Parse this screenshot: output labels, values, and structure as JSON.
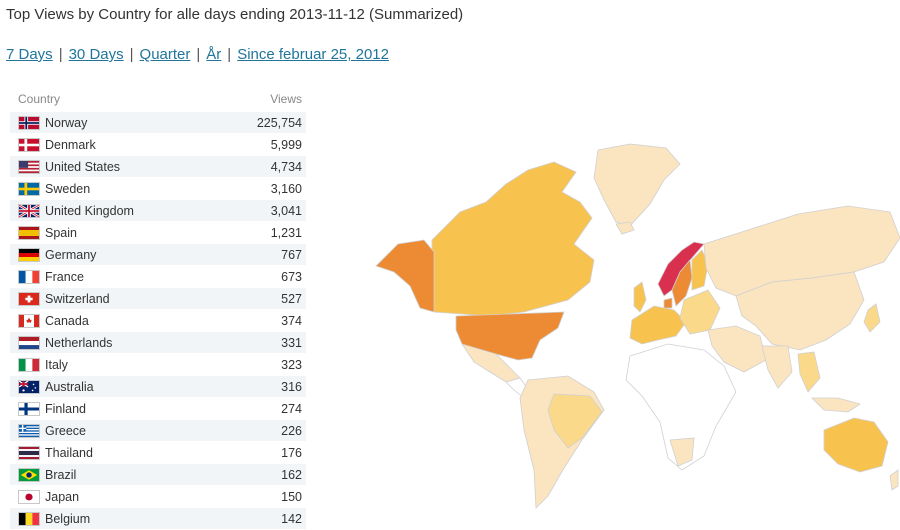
{
  "header": {
    "title": "Top Views by Country for alle days ending 2013-11-12 (Summarized)"
  },
  "periods": [
    {
      "label": "7 Days"
    },
    {
      "label": "30 Days"
    },
    {
      "label": "Quarter"
    },
    {
      "label": "År"
    },
    {
      "label": "Since februar 25, 2012"
    }
  ],
  "periods_separator": "|",
  "table": {
    "col_country": "Country",
    "col_views": "Views",
    "rows": [
      {
        "name": "Norway",
        "views": "225,754",
        "flag": "norway-flag-icon"
      },
      {
        "name": "Denmark",
        "views": "5,999",
        "flag": "denmark-flag-icon"
      },
      {
        "name": "United States",
        "views": "4,734",
        "flag": "usa-flag-icon"
      },
      {
        "name": "Sweden",
        "views": "3,160",
        "flag": "sweden-flag-icon"
      },
      {
        "name": "United Kingdom",
        "views": "3,041",
        "flag": "uk-flag-icon"
      },
      {
        "name": "Spain",
        "views": "1,231",
        "flag": "spain-flag-icon"
      },
      {
        "name": "Germany",
        "views": "767",
        "flag": "germany-flag-icon"
      },
      {
        "name": "France",
        "views": "673",
        "flag": "france-flag-icon"
      },
      {
        "name": "Switzerland",
        "views": "527",
        "flag": "switzerland-flag-icon"
      },
      {
        "name": "Canada",
        "views": "374",
        "flag": "canada-flag-icon"
      },
      {
        "name": "Netherlands",
        "views": "331",
        "flag": "netherlands-flag-icon"
      },
      {
        "name": "Italy",
        "views": "323",
        "flag": "italy-flag-icon"
      },
      {
        "name": "Australia",
        "views": "316",
        "flag": "australia-flag-icon"
      },
      {
        "name": "Finland",
        "views": "274",
        "flag": "finland-flag-icon"
      },
      {
        "name": "Greece",
        "views": "226",
        "flag": "greece-flag-icon"
      },
      {
        "name": "Thailand",
        "views": "176",
        "flag": "thailand-flag-icon"
      },
      {
        "name": "Brazil",
        "views": "162",
        "flag": "brazil-flag-icon"
      },
      {
        "name": "Japan",
        "views": "150",
        "flag": "japan-flag-icon"
      },
      {
        "name": "Belgium",
        "views": "142",
        "flag": "belgium-flag-icon"
      }
    ]
  },
  "map": {
    "colors": {
      "top": "#d9304f",
      "high": "#ec8b34",
      "mid": "#f8c24e",
      "low": "#fad98a",
      "lowest": "#fbe4c0",
      "none": "#ffffff",
      "border": "#d0d0d0"
    }
  }
}
